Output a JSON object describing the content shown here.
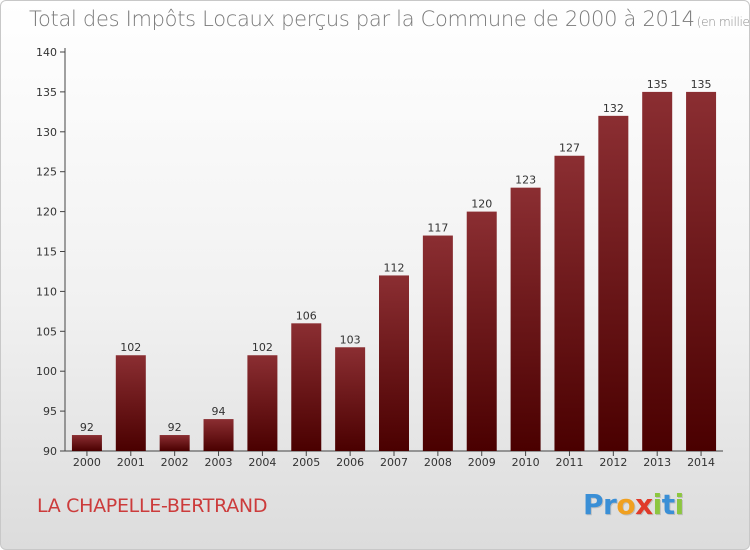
{
  "header": {
    "title": "Total des Impôts Locaux perçus par la Commune de 2000 à 2014",
    "unit": "(en milliers d'€)"
  },
  "commune_name": "LA CHAPELLE-BERTRAND",
  "logo": {
    "text": "Proxiti",
    "letters": [
      {
        "ch": "P",
        "color": "#3a8fd6"
      },
      {
        "ch": "r",
        "color": "#3a8fd6"
      },
      {
        "ch": "o",
        "color": "#f0a020"
      },
      {
        "ch": "x",
        "color": "#e03a2a"
      },
      {
        "ch": "i",
        "color": "#8cc63f"
      },
      {
        "ch": "t",
        "color": "#3a8fd6"
      },
      {
        "ch": "i",
        "color": "#8cc63f"
      }
    ]
  },
  "chart_data": {
    "type": "bar",
    "title": "Total des Impôts Locaux perçus par la Commune de 2000 à 2014",
    "xlabel": "",
    "ylabel": "",
    "categories": [
      "2000",
      "2001",
      "2002",
      "2003",
      "2004",
      "2005",
      "2006",
      "2007",
      "2008",
      "2009",
      "2010",
      "2011",
      "2012",
      "2013",
      "2014"
    ],
    "values": [
      92,
      102,
      92,
      94,
      102,
      106,
      103,
      112,
      117,
      120,
      123,
      127,
      132,
      135,
      135
    ],
    "ylim": [
      90,
      140
    ],
    "yticks": [
      90,
      95,
      100,
      105,
      110,
      115,
      120,
      125,
      130,
      135,
      140
    ],
    "grid": false,
    "legend": "none",
    "bar_color_top": "#8b2e32",
    "bar_color_bottom": "#4a0000"
  }
}
